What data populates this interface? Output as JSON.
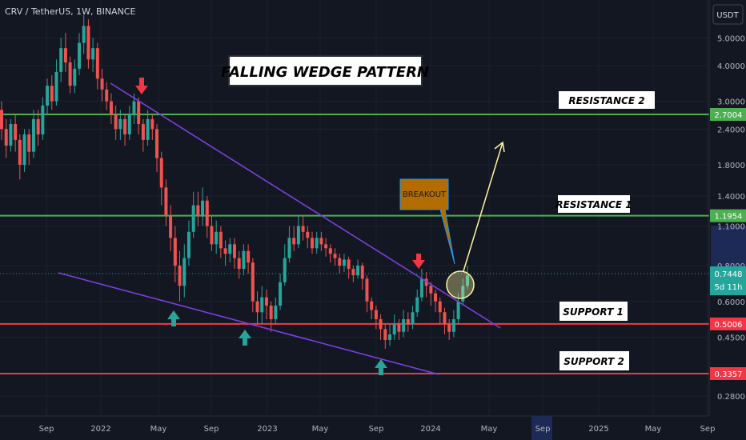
{
  "header": {
    "symbol_title": "CRV / TetherUS, 1W, BINANCE"
  },
  "axis": {
    "currency": "USDT",
    "price_ticks": [
      "5.0000",
      "4.0000",
      "3.0000",
      "2.4000",
      "1.8000",
      "1.4000",
      "1.1000",
      "0.8000",
      "0.6000",
      "0.4500",
      "0.2800"
    ],
    "time_ticks": [
      "Sep",
      "2022",
      "May",
      "Sep",
      "2023",
      "May",
      "Sep",
      "2024",
      "May",
      "Sep",
      "2025",
      "May",
      "Sep"
    ],
    "countdown": "5d 11h"
  },
  "annotations": {
    "title": "FALLING WEDGE PATTERN",
    "breakout": "BREAKOUT",
    "resistance_2": "RESISTANCE 2",
    "resistance_1": "RESISTANCE 1",
    "support_1": "SUPPORT 1",
    "support_2": "SUPPORT 2"
  },
  "colors": {
    "background": "#131722",
    "resistance": "#4caf50",
    "support": "#f23645",
    "wedge": "#7b3fe4",
    "up_candle": "#26a69a",
    "down_candle": "#ef5350",
    "breakout_box": "#b26c00",
    "arrow": "#fff59d"
  },
  "chart_data": {
    "type": "candlestick",
    "title": "CRV / TetherUS, 1W, BINANCE",
    "y_scale": "log",
    "ylim": [
      0.26,
      6.0
    ],
    "levels": [
      {
        "name": "RESISTANCE 2",
        "price": 2.7004,
        "label": "2.7004",
        "color": "#4caf50"
      },
      {
        "name": "RESISTANCE 1",
        "price": 1.1954,
        "label": "1.1954",
        "color": "#4caf50"
      },
      {
        "name": "SUPPORT 1",
        "price": 0.5006,
        "label": "0.5006",
        "color": "#f23645"
      },
      {
        "name": "SUPPORT 2",
        "price": 0.3357,
        "label": "0.3357",
        "color": "#f23645"
      }
    ],
    "current_price": {
      "value": 0.7448,
      "label": "0.7448"
    },
    "x_labels": [
      "Sep",
      "2022",
      "May",
      "Sep",
      "2023",
      "May",
      "Sep",
      "2024",
      "May",
      "Sep",
      "2025",
      "May",
      "Sep"
    ],
    "candles": [
      [
        2.8,
        2.4,
        3.0,
        2.2
      ],
      [
        2.4,
        2.1,
        2.6,
        1.9
      ],
      [
        2.1,
        2.5,
        2.6,
        2.0
      ],
      [
        2.5,
        2.2,
        2.7,
        2.0
      ],
      [
        2.2,
        1.8,
        2.3,
        1.6
      ],
      [
        1.8,
        2.3,
        2.4,
        1.7
      ],
      [
        2.3,
        2.0,
        2.4,
        1.8
      ],
      [
        2.0,
        2.6,
        2.8,
        1.9
      ],
      [
        2.6,
        2.3,
        2.8,
        2.1
      ],
      [
        2.3,
        2.9,
        3.1,
        2.2
      ],
      [
        2.9,
        3.4,
        3.6,
        2.7
      ],
      [
        3.4,
        3.0,
        3.7,
        2.8
      ],
      [
        3.0,
        3.8,
        4.2,
        2.9
      ],
      [
        3.8,
        4.6,
        5.0,
        3.5
      ],
      [
        4.6,
        4.1,
        5.2,
        3.8
      ],
      [
        4.1,
        3.4,
        4.3,
        3.2
      ],
      [
        3.4,
        3.9,
        4.2,
        3.2
      ],
      [
        3.9,
        4.8,
        5.2,
        3.7
      ],
      [
        4.8,
        5.5,
        6.0,
        4.4
      ],
      [
        5.5,
        4.2,
        5.8,
        3.9
      ],
      [
        4.2,
        4.6,
        5.0,
        3.8
      ],
      [
        4.6,
        3.6,
        4.8,
        3.3
      ],
      [
        3.6,
        3.3,
        3.9,
        3.0
      ],
      [
        3.3,
        3.0,
        3.5,
        2.8
      ],
      [
        3.0,
        2.7,
        3.2,
        2.5
      ],
      [
        2.7,
        2.4,
        2.9,
        2.2
      ],
      [
        2.4,
        2.6,
        2.8,
        2.2
      ],
      [
        2.6,
        2.3,
        2.7,
        2.1
      ],
      [
        2.3,
        2.7,
        2.9,
        2.2
      ],
      [
        2.7,
        3.0,
        3.2,
        2.5
      ],
      [
        3.0,
        2.5,
        3.1,
        2.3
      ],
      [
        2.5,
        2.2,
        2.6,
        2.0
      ],
      [
        2.2,
        2.6,
        2.8,
        2.1
      ],
      [
        2.6,
        2.4,
        2.7,
        2.2
      ],
      [
        2.4,
        1.9,
        2.5,
        1.7
      ],
      [
        1.9,
        1.5,
        2.0,
        1.3
      ],
      [
        1.5,
        1.2,
        1.6,
        1.1
      ],
      [
        1.2,
        1.0,
        1.3,
        0.9
      ],
      [
        1.0,
        0.8,
        1.1,
        0.7
      ],
      [
        0.8,
        0.68,
        0.9,
        0.6
      ],
      [
        0.68,
        0.85,
        0.95,
        0.62
      ],
      [
        0.85,
        1.05,
        1.15,
        0.8
      ],
      [
        1.05,
        1.3,
        1.45,
        1.0
      ],
      [
        1.3,
        1.2,
        1.45,
        1.1
      ],
      [
        1.2,
        1.35,
        1.5,
        1.1
      ],
      [
        1.35,
        1.1,
        1.4,
        1.0
      ],
      [
        1.1,
        0.95,
        1.2,
        0.9
      ],
      [
        0.95,
        1.05,
        1.15,
        0.88
      ],
      [
        1.05,
        0.92,
        1.1,
        0.85
      ],
      [
        0.92,
        0.88,
        0.98,
        0.8
      ],
      [
        0.88,
        0.95,
        1.0,
        0.82
      ],
      [
        0.95,
        0.85,
        1.0,
        0.78
      ],
      [
        0.85,
        0.78,
        0.9,
        0.72
      ],
      [
        0.78,
        0.9,
        0.95,
        0.74
      ],
      [
        0.9,
        0.82,
        0.95,
        0.75
      ],
      [
        0.82,
        0.6,
        0.85,
        0.55
      ],
      [
        0.6,
        0.55,
        0.65,
        0.5
      ],
      [
        0.55,
        0.62,
        0.68,
        0.5
      ],
      [
        0.62,
        0.58,
        0.66,
        0.52
      ],
      [
        0.58,
        0.52,
        0.6,
        0.47
      ],
      [
        0.52,
        0.58,
        0.62,
        0.5
      ],
      [
        0.58,
        0.7,
        0.75,
        0.56
      ],
      [
        0.7,
        0.85,
        0.95,
        0.68
      ],
      [
        0.85,
        1.0,
        1.1,
        0.82
      ],
      [
        1.0,
        0.95,
        1.1,
        0.9
      ],
      [
        0.95,
        1.1,
        1.2,
        0.92
      ],
      [
        1.1,
        1.05,
        1.2,
        0.98
      ],
      [
        1.05,
        1.0,
        1.1,
        0.92
      ],
      [
        1.0,
        0.92,
        1.05,
        0.88
      ],
      [
        0.92,
        1.0,
        1.05,
        0.88
      ],
      [
        1.0,
        0.95,
        1.05,
        0.9
      ],
      [
        0.95,
        0.92,
        1.0,
        0.86
      ],
      [
        0.92,
        0.88,
        0.95,
        0.82
      ],
      [
        0.88,
        0.85,
        0.92,
        0.8
      ],
      [
        0.85,
        0.8,
        0.88,
        0.75
      ],
      [
        0.8,
        0.84,
        0.88,
        0.76
      ],
      [
        0.84,
        0.78,
        0.86,
        0.72
      ],
      [
        0.78,
        0.74,
        0.8,
        0.7
      ],
      [
        0.74,
        0.8,
        0.84,
        0.72
      ],
      [
        0.8,
        0.72,
        0.82,
        0.66
      ],
      [
        0.72,
        0.6,
        0.74,
        0.55
      ],
      [
        0.6,
        0.56,
        0.62,
        0.52
      ],
      [
        0.56,
        0.52,
        0.58,
        0.48
      ],
      [
        0.52,
        0.48,
        0.54,
        0.44
      ],
      [
        0.48,
        0.44,
        0.5,
        0.41
      ],
      [
        0.44,
        0.46,
        0.5,
        0.42
      ],
      [
        0.46,
        0.5,
        0.54,
        0.44
      ],
      [
        0.5,
        0.47,
        0.52,
        0.44
      ],
      [
        0.47,
        0.52,
        0.56,
        0.45
      ],
      [
        0.52,
        0.5,
        0.55,
        0.47
      ],
      [
        0.5,
        0.55,
        0.58,
        0.48
      ],
      [
        0.55,
        0.62,
        0.66,
        0.53
      ],
      [
        0.62,
        0.72,
        0.78,
        0.6
      ],
      [
        0.72,
        0.68,
        0.76,
        0.62
      ],
      [
        0.68,
        0.64,
        0.7,
        0.58
      ],
      [
        0.64,
        0.6,
        0.66,
        0.55
      ],
      [
        0.6,
        0.55,
        0.62,
        0.5
      ],
      [
        0.55,
        0.5,
        0.57,
        0.46
      ],
      [
        0.5,
        0.47,
        0.52,
        0.44
      ],
      [
        0.47,
        0.52,
        0.56,
        0.45
      ],
      [
        0.52,
        0.6,
        0.64,
        0.5
      ],
      [
        0.6,
        0.68,
        0.72,
        0.58
      ],
      [
        0.68,
        0.74,
        0.8,
        0.66
      ]
    ]
  }
}
